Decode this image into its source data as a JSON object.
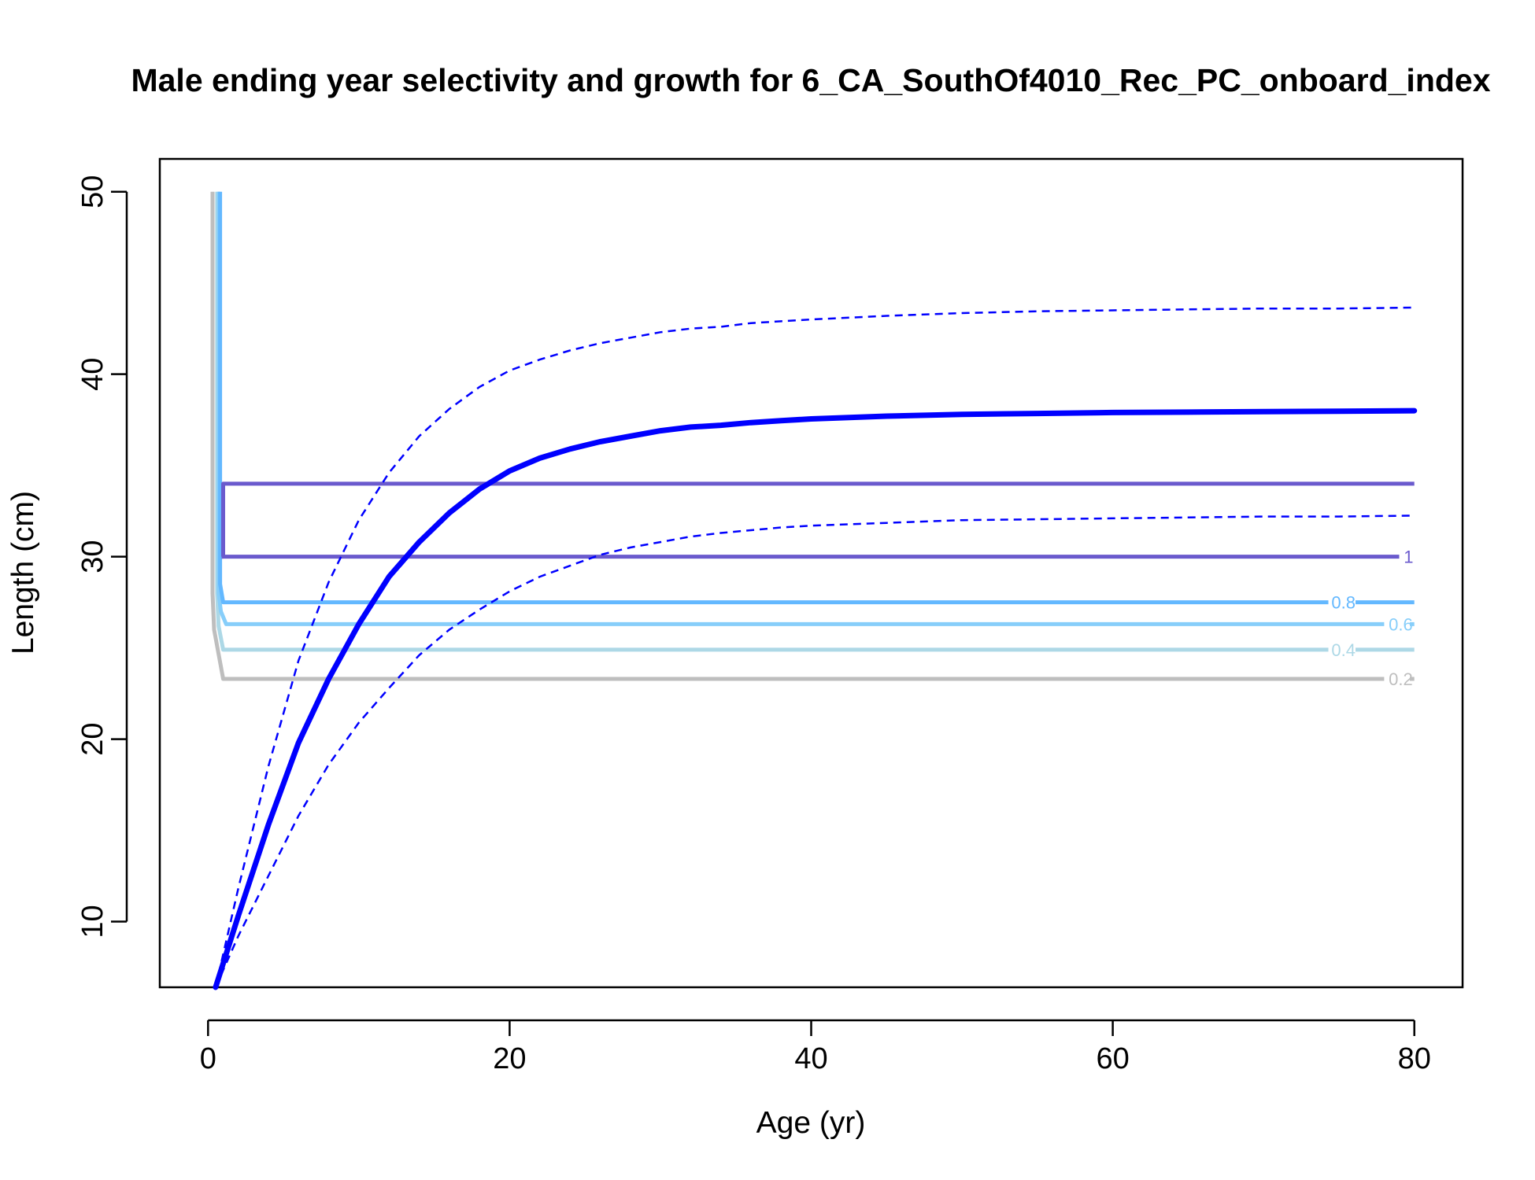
{
  "chart_data": {
    "type": "line",
    "title": "Male ending year selectivity and growth for 6_CA_SouthOf4010_Rec_PC_onboard_index",
    "xlabel": "Age (yr)",
    "ylabel": "Length (cm)",
    "xlim": [
      -3.2,
      83.2
    ],
    "ylim": [
      6.4,
      51.8
    ],
    "xticks": [
      0,
      20,
      40,
      60,
      80
    ],
    "yticks": [
      10,
      20,
      30,
      40,
      50
    ],
    "grid": false,
    "colors": {
      "growth": "#0000ff",
      "contour_1": "#6a5acd",
      "contour_0.8": "#63b8ff",
      "contour_0.6": "#87cefa",
      "contour_0.4": "#add8e6",
      "contour_0.2": "#bebebe"
    },
    "growth": {
      "x": [
        0.5,
        2,
        4,
        6,
        8,
        10,
        12,
        14,
        16,
        18,
        20,
        22,
        24,
        26,
        28,
        30,
        32,
        34,
        36,
        38,
        40,
        45,
        50,
        55,
        60,
        65,
        70,
        75,
        80
      ],
      "mean": [
        6.4,
        10.3,
        15.3,
        19.8,
        23.3,
        26.3,
        28.9,
        30.8,
        32.4,
        33.7,
        34.7,
        35.4,
        35.9,
        36.3,
        36.6,
        36.9,
        37.1,
        37.2,
        37.35,
        37.45,
        37.55,
        37.7,
        37.8,
        37.85,
        37.9,
        37.92,
        37.95,
        37.97,
        38.0
      ],
      "upper": [
        6.4,
        11.8,
        18.5,
        24.3,
        28.6,
        32.0,
        34.6,
        36.6,
        38.1,
        39.3,
        40.2,
        40.8,
        41.3,
        41.7,
        42.0,
        42.3,
        42.5,
        42.6,
        42.8,
        42.9,
        43.0,
        43.2,
        43.35,
        43.45,
        43.5,
        43.55,
        43.6,
        43.6,
        43.65
      ],
      "lower": [
        6.4,
        9.2,
        12.5,
        15.8,
        18.6,
        20.9,
        22.8,
        24.6,
        26.0,
        27.1,
        28.1,
        28.9,
        29.5,
        30.1,
        30.5,
        30.8,
        31.1,
        31.3,
        31.45,
        31.6,
        31.7,
        31.85,
        32.0,
        32.05,
        32.1,
        32.15,
        32.2,
        32.2,
        32.25
      ]
    },
    "contours": [
      {
        "label": "1",
        "path": [
          [
            0.9,
            30.0
          ],
          [
            79.0,
            30.0
          ]
        ],
        "label_at": [
          79.3,
          30.0
        ]
      },
      {
        "label": "0.8",
        "path": [
          [
            0.8,
            27.5
          ],
          [
            74.3,
            27.5
          ]
        ],
        "label_at": [
          74.5,
          27.5
        ]
      },
      {
        "label": "0.6",
        "path": [
          [
            0.8,
            26.3
          ],
          [
            78.0,
            26.3
          ]
        ],
        "label_at": [
          78.3,
          26.3
        ]
      },
      {
        "label": "0.4",
        "path": [
          [
            0.9,
            24.9
          ],
          [
            74.3,
            24.9
          ]
        ],
        "label_at": [
          74.5,
          24.9
        ]
      },
      {
        "label": "0.2",
        "path": [
          [
            1.0,
            23.3
          ],
          [
            78.0,
            23.3
          ]
        ],
        "label_at": [
          78.3,
          23.3
        ]
      }
    ],
    "selectivity_lines": [
      {
        "color_key": "contour_0.2",
        "path": [
          [
            0.3,
            50.0
          ],
          [
            0.3,
            28.0
          ],
          [
            0.4,
            26.0
          ],
          [
            1.0,
            23.3
          ],
          [
            78.0,
            23.3
          ]
        ],
        "tail": [
          [
            79.7,
            23.3
          ],
          [
            80,
            23.3
          ]
        ]
      },
      {
        "color_key": "contour_0.4",
        "path": [
          [
            0.6,
            50.0
          ],
          [
            0.6,
            28.0
          ],
          [
            0.7,
            26.2
          ],
          [
            1.0,
            24.9
          ],
          [
            74.3,
            24.9
          ]
        ],
        "tail": [
          [
            76.1,
            24.9
          ],
          [
            80,
            24.9
          ]
        ]
      },
      {
        "color_key": "contour_0.6",
        "path": [
          [
            0.7,
            50.0
          ],
          [
            0.7,
            28.0
          ],
          [
            0.85,
            27.0
          ],
          [
            1.2,
            26.3
          ],
          [
            78.0,
            26.3
          ]
        ],
        "tail": [
          [
            79.7,
            26.3
          ],
          [
            80,
            26.3
          ]
        ]
      },
      {
        "color_key": "contour_0.8",
        "path": [
          [
            0.8,
            50.0
          ],
          [
            0.8,
            28.5
          ],
          [
            1.0,
            27.5
          ],
          [
            74.3,
            27.5
          ]
        ],
        "tail": [
          [
            76.1,
            27.5
          ],
          [
            80,
            27.5
          ]
        ]
      },
      {
        "color_key": "contour_1",
        "path": [
          [
            0.9,
            30.0
          ],
          [
            1.0,
            30.0
          ],
          [
            1.0,
            34.0
          ],
          [
            80,
            34.0
          ]
        ],
        "tail": [
          [
            0.9,
            30.0
          ],
          [
            79.0,
            30.0
          ]
        ]
      }
    ]
  }
}
